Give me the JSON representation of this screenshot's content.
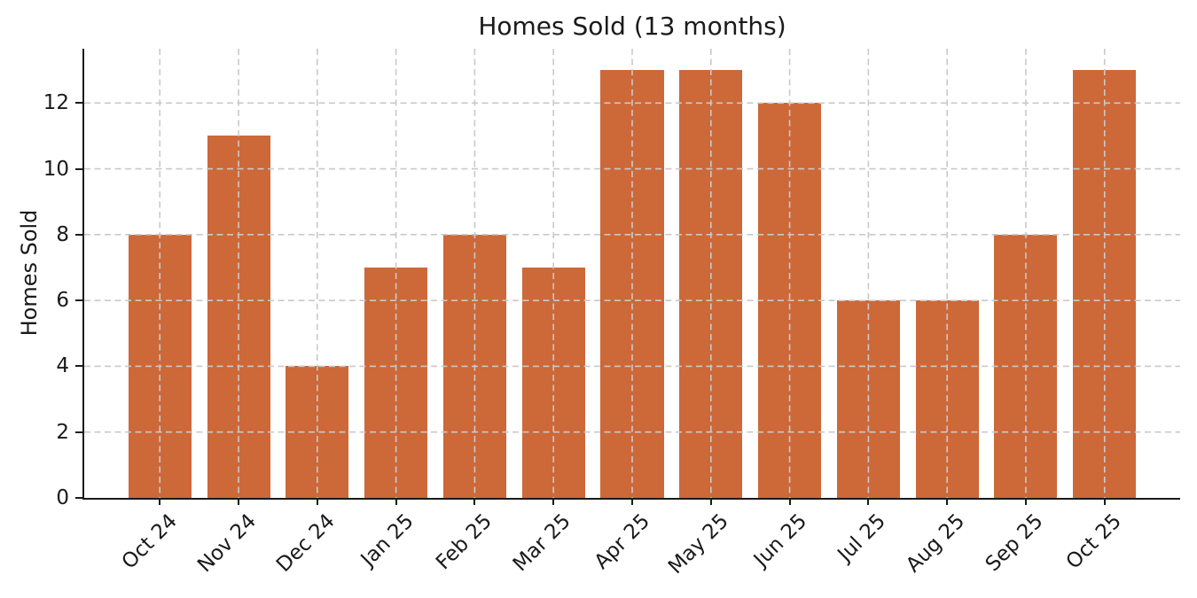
{
  "chart_data": {
    "type": "bar",
    "title": "Homes Sold (13 months)",
    "xlabel": "",
    "ylabel": "Homes Sold",
    "categories": [
      "Oct 24",
      "Nov 24",
      "Dec 24",
      "Jan 25",
      "Feb 25",
      "Mar 25",
      "Apr 25",
      "May 25",
      "Jun 25",
      "Jul 25",
      "Aug 25",
      "Sep 25",
      "Oct 25"
    ],
    "values": [
      8,
      11,
      4,
      7,
      8,
      7,
      13,
      13,
      12,
      6,
      6,
      8,
      13
    ],
    "yticks": [
      0,
      2,
      4,
      6,
      8,
      10,
      12
    ],
    "ylim": [
      0,
      13.65
    ],
    "grid": "both, dashed, drawn above bars",
    "legend_position": "none",
    "colors": {
      "bar": "#cd6839",
      "grid": "#c9c9c9",
      "axis": "#1a1a1a",
      "text": "#1a1a1a",
      "background": "#ffffff"
    }
  }
}
